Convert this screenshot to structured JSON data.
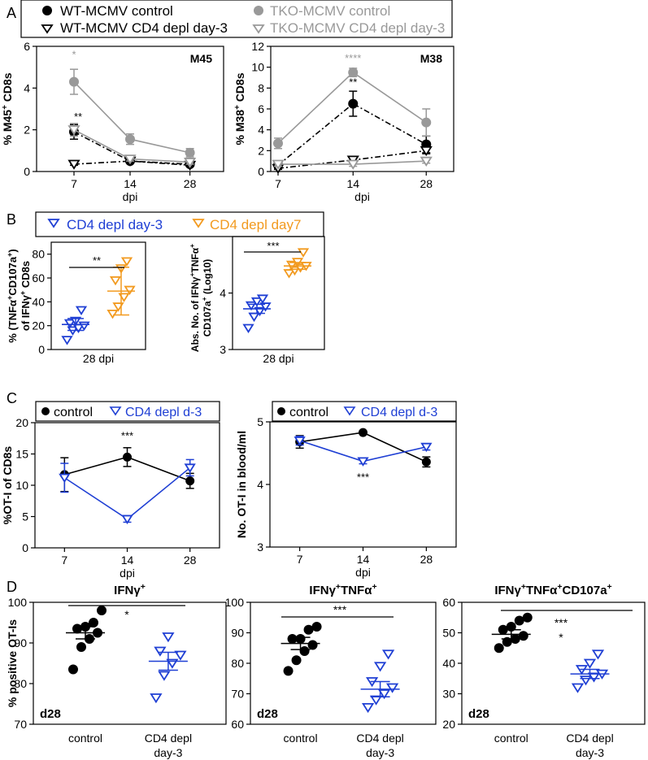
{
  "panel_labels": [
    "A",
    "B",
    "C",
    "D"
  ],
  "legendA": {
    "wt_control": "WT-MCMV control",
    "tko_control": "TKO-MCMV control",
    "wt_depl": "WT-MCMV CD4 depl day-3",
    "tko_depl": "TKO-MCMV CD4 depl day-3"
  },
  "legendB": {
    "d3": "CD4 depl day-3",
    "d7": "CD4 depl day7"
  },
  "legendC": {
    "control": "control",
    "depl": "CD4 depl d-3"
  },
  "colors": {
    "black": "#000000",
    "grey": "#999999",
    "blue": "#1f3fd4",
    "orange": "#f29a1f"
  },
  "chart_data": [
    {
      "id": "A1",
      "type": "line",
      "title": "M45",
      "ylabel": "% M45+ CD8s",
      "xlabel": "dpi",
      "x": [
        "7",
        "14",
        "28"
      ],
      "ylim": [
        0,
        6
      ],
      "yticks": [
        "0",
        "2",
        "4",
        "6"
      ],
      "series": [
        {
          "name": "WT-MCMV control",
          "values": [
            1.9,
            0.5,
            0.35
          ],
          "err": [
            0.35,
            0.05,
            0.05
          ]
        },
        {
          "name": "TKO-MCMV control",
          "values": [
            4.3,
            1.55,
            0.9
          ],
          "err": [
            0.6,
            0.25,
            0.2
          ]
        },
        {
          "name": "WT-MCMV CD4 depl day-3",
          "values": [
            0.35,
            0.5,
            0.3
          ],
          "err": [
            0.05,
            0.05,
            0.05
          ]
        },
        {
          "name": "TKO-MCMV CD4 depl day-3",
          "values": [
            2.0,
            0.6,
            0.45
          ],
          "err": [
            0.3,
            0.1,
            0.1
          ]
        }
      ],
      "annotations": [
        "*",
        "**"
      ]
    },
    {
      "id": "A2",
      "type": "line",
      "title": "M38",
      "ylabel": "% M38+ CD8s",
      "xlabel": "dpi",
      "x": [
        "7",
        "14",
        "28"
      ],
      "ylim": [
        0,
        12
      ],
      "yticks": [
        "0",
        "2",
        "4",
        "6",
        "8",
        "10",
        "12"
      ],
      "series": [
        {
          "name": "WT-MCMV control",
          "values": [
            0.6,
            6.5,
            2.6
          ],
          "err": [
            0.3,
            1.2,
            0.8
          ]
        },
        {
          "name": "TKO-MCMV control",
          "values": [
            2.7,
            9.5,
            4.7
          ],
          "err": [
            0.5,
            0.4,
            1.3
          ]
        },
        {
          "name": "WT-MCMV CD4 depl day-3",
          "values": [
            0.3,
            1.1,
            2.0
          ],
          "err": [
            0.1,
            0.2,
            0.3
          ]
        },
        {
          "name": "TKO-MCMV CD4 depl day-3",
          "values": [
            0.7,
            0.7,
            1.0
          ],
          "err": [
            0.2,
            0.2,
            0.2
          ]
        }
      ],
      "annotations": [
        "****",
        "**"
      ]
    },
    {
      "id": "B1",
      "type": "scatter",
      "ylabel": "% (TNFα+CD107a+) of IFNγ+ CD8s",
      "xlabel": "28 dpi",
      "ylim": [
        0,
        90
      ],
      "yticks": [
        "0",
        "20",
        "40",
        "60",
        "80"
      ],
      "groups": [
        {
          "name": "CD4 depl day-3",
          "points": [
            8,
            16,
            18,
            20,
            22,
            24,
            33
          ],
          "mean": 21,
          "err": 5
        },
        {
          "name": "CD4 depl day7",
          "points": [
            30,
            36,
            44,
            50,
            58,
            68,
            74
          ],
          "mean": 49,
          "err": 20
        }
      ],
      "annotations": [
        "**"
      ]
    },
    {
      "id": "B2",
      "type": "scatter",
      "ylabel": "Abs. No. of IFNγ+TNFα+ CD107a+ (Log10)",
      "xlabel": "28 dpi",
      "ylim": [
        3,
        5
      ],
      "yticks": [
        "3",
        "4"
      ],
      "groups": [
        {
          "name": "CD4 depl day-3",
          "points": [
            3.38,
            3.58,
            3.68,
            3.76,
            3.78,
            3.85,
            3.9
          ],
          "mean": 3.72,
          "err": 0.08
        },
        {
          "name": "CD4 depl day7",
          "points": [
            4.35,
            4.4,
            4.45,
            4.48,
            4.5,
            4.55,
            4.72
          ],
          "mean": 4.48,
          "err": 0.06
        }
      ],
      "annotations": [
        "***"
      ]
    },
    {
      "id": "C1",
      "type": "line",
      "ylabel": "%OT-I of CD8s",
      "xlabel": "dpi",
      "x": [
        "7",
        "14",
        "28"
      ],
      "ylim": [
        0,
        20
      ],
      "yticks": [
        "0",
        "5",
        "10",
        "15",
        "20"
      ],
      "series": [
        {
          "name": "control",
          "values": [
            11.7,
            14.5,
            10.7
          ],
          "err": [
            2.7,
            1.5,
            1.2
          ]
        },
        {
          "name": "CD4 depl d-3",
          "values": [
            11.2,
            4.6,
            12.8
          ],
          "err": [
            2.3,
            0.5,
            1.3
          ]
        }
      ],
      "annotations": [
        "***"
      ]
    },
    {
      "id": "C2",
      "type": "line",
      "ylabel": "No. OT-I in blood/ml",
      "xlabel": "dpi",
      "x": [
        "7",
        "14",
        "28"
      ],
      "ylim": [
        3,
        5
      ],
      "yticks": [
        "3",
        "4",
        "5"
      ],
      "series": [
        {
          "name": "control",
          "values": [
            4.68,
            4.83,
            4.36
          ],
          "err": [
            0.1,
            0.02,
            0.08
          ]
        },
        {
          "name": "CD4 depl d-3",
          "values": [
            4.7,
            4.37,
            4.6
          ],
          "err": [
            0.07,
            0.04,
            0.05
          ]
        }
      ],
      "annotations": [
        "***"
      ]
    },
    {
      "id": "D1",
      "type": "scatter",
      "title": "IFNγ+",
      "ylabel": "% positive OT-Is",
      "corner": "d28",
      "categories": [
        "control",
        "CD4 depl day-3"
      ],
      "ylim": [
        70,
        100
      ],
      "yticks": [
        "70",
        "80",
        "90",
        "100"
      ],
      "groups": [
        {
          "name": "control",
          "points": [
            83.5,
            89,
            91,
            92.5,
            93.5,
            94,
            95,
            98
          ],
          "mean": 92.5,
          "err": 1.5
        },
        {
          "name": "CD4 depl day-3",
          "points": [
            76.5,
            82,
            85,
            87,
            88,
            91.5
          ],
          "mean": 85.5,
          "err": 2.2
        }
      ],
      "annotations": [
        "*"
      ]
    },
    {
      "id": "D2",
      "type": "scatter",
      "title": "IFNγ+TNFα+",
      "ylabel": "",
      "corner": "d28",
      "categories": [
        "control",
        "CD4 depl day-3"
      ],
      "ylim": [
        60,
        100
      ],
      "yticks": [
        "60",
        "70",
        "80",
        "90",
        "100"
      ],
      "groups": [
        {
          "name": "control",
          "points": [
            77.5,
            81,
            84,
            86,
            88,
            88,
            91,
            92
          ],
          "mean": 86.5,
          "err": 2
        },
        {
          "name": "CD4 depl day-3",
          "points": [
            65.5,
            68,
            70,
            72,
            74,
            79,
            83
          ],
          "mean": 71.5,
          "err": 2.5
        }
      ],
      "annotations": [
        "***"
      ]
    },
    {
      "id": "D3",
      "type": "scatter",
      "title": "IFNγ+TNFα+CD107a+",
      "ylabel": "",
      "corner": "d28",
      "categories": [
        "control",
        "CD4 depl day-3"
      ],
      "ylim": [
        20,
        60
      ],
      "yticks": [
        "20",
        "30",
        "40",
        "50",
        "60"
      ],
      "groups": [
        {
          "name": "control",
          "points": [
            45,
            47,
            48,
            49,
            51,
            52,
            54,
            55
          ],
          "mean": 49.5,
          "err": 1.5
        },
        {
          "name": "CD4 depl day-3",
          "points": [
            32,
            34.5,
            35.5,
            36.5,
            38,
            40,
            43
          ],
          "mean": 36.5,
          "err": 1.5
        }
      ],
      "annotations": [
        "***",
        "*"
      ]
    }
  ]
}
